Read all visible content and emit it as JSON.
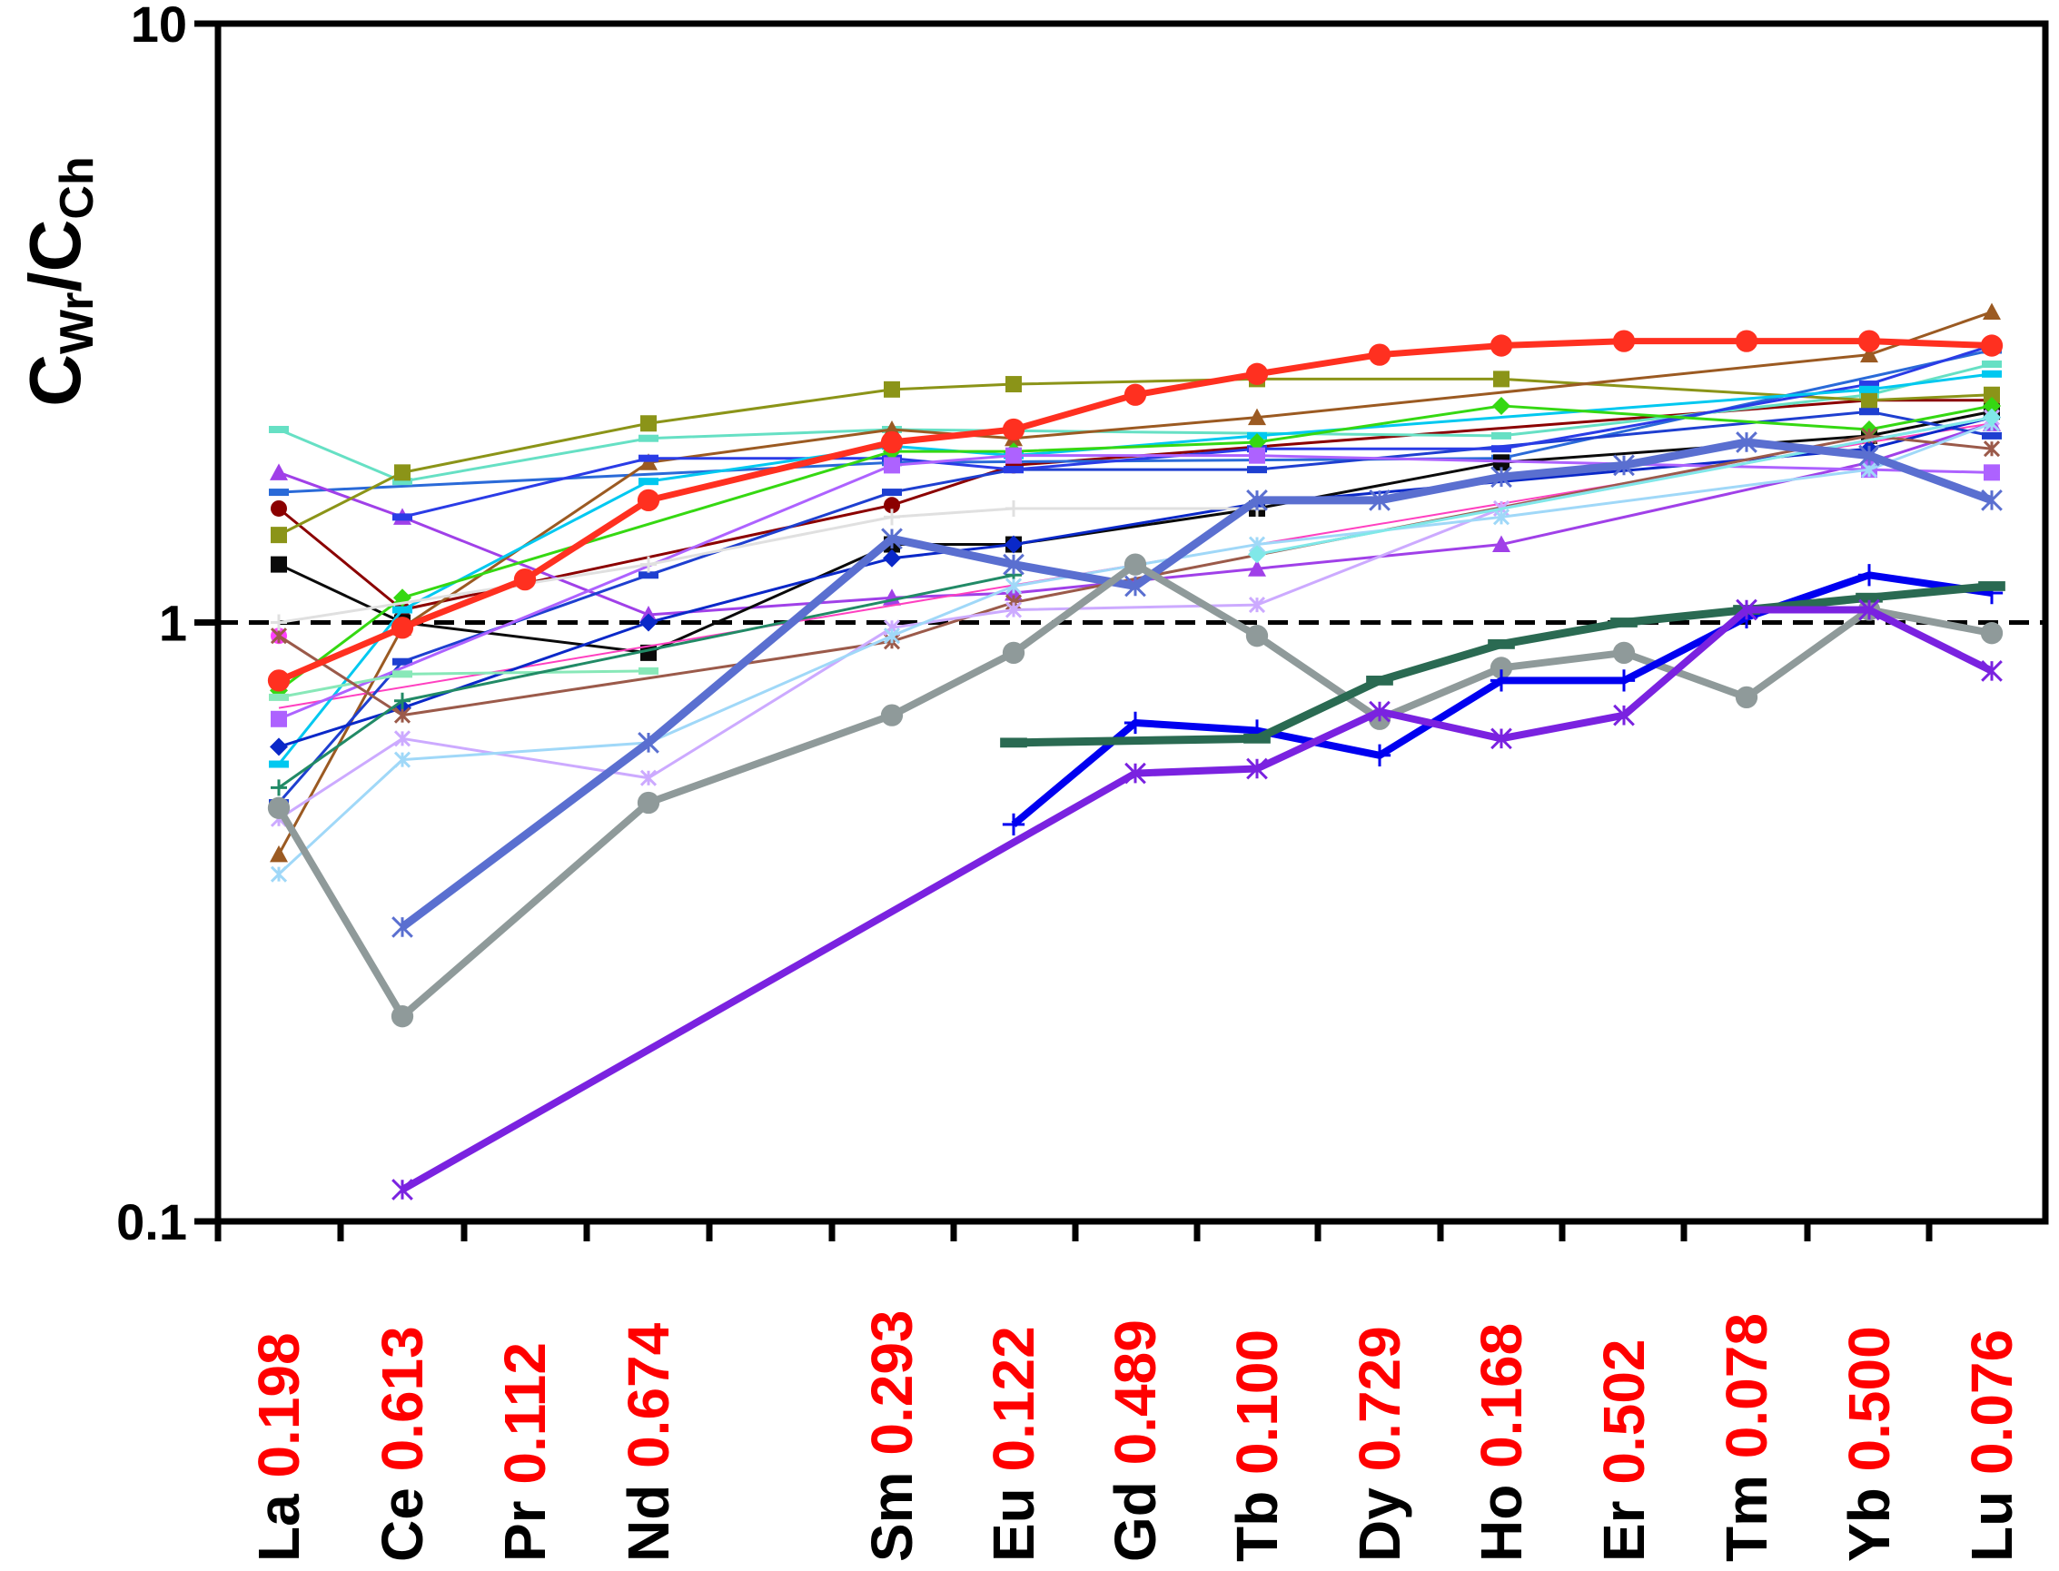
{
  "chart_data": {
    "type": "line",
    "ylabel": {
      "main1": "C",
      "sub1": "Wr",
      "main2": "/C",
      "sub2": "Ch"
    },
    "yscale": "log",
    "ylim": [
      0.1,
      10
    ],
    "yticks": [
      "0.1",
      "1",
      "10"
    ],
    "reference_line": {
      "y": 1,
      "style": "dashed"
    },
    "categories": [
      "La",
      "Ce",
      "Pr",
      "Nd",
      "Sm",
      "Eu",
      "Gd",
      "Tb",
      "Dy",
      "Ho",
      "Er",
      "Tm",
      "Yb",
      "Lu"
    ],
    "category_values": [
      "0.198",
      "0.613",
      "0.112",
      "0.674",
      "0.293",
      "0.122",
      "0.489",
      "0.100",
      "0.729",
      "0.168",
      "0.502",
      "0.078",
      "0.500",
      "0.076"
    ],
    "series": [
      {
        "color": "#8b0000",
        "width": 3,
        "marker": "circle",
        "values": [
          1.55,
          1.05,
          null,
          null,
          1.57,
          1.83,
          null,
          null,
          null,
          null,
          null,
          null,
          2.35,
          2.35
        ]
      },
      {
        "color": "#2a6ad8",
        "width": 3,
        "marker": "dash",
        "values": [
          1.65,
          null,
          null,
          null,
          1.85,
          null,
          null,
          null,
          null,
          1.88,
          null,
          null,
          null,
          2.85
        ]
      },
      {
        "color": "#66e0c4",
        "width": 3,
        "marker": "dash",
        "values": [
          2.1,
          1.72,
          null,
          2.03,
          2.1,
          null,
          null,
          null,
          null,
          2.05,
          null,
          null,
          2.4,
          2.7
        ]
      },
      {
        "color": "#a040e8",
        "width": 3,
        "marker": "triangle",
        "values": [
          1.78,
          1.5,
          null,
          1.03,
          1.1,
          1.12,
          null,
          1.23,
          null,
          1.35,
          null,
          null,
          1.85,
          2.15
        ]
      },
      {
        "color": "#8b9418",
        "width": 3,
        "marker": "square",
        "values": [
          1.4,
          1.78,
          null,
          2.15,
          2.45,
          2.5,
          null,
          2.55,
          null,
          2.55,
          null,
          null,
          2.35,
          2.4
        ]
      },
      {
        "color": "#0a0a0a",
        "width": 3,
        "marker": "square",
        "values": [
          1.25,
          1.0,
          null,
          0.89,
          1.35,
          1.35,
          null,
          1.55,
          null,
          1.85,
          null,
          null,
          2.05,
          2.25
        ]
      },
      {
        "color": "#9b5a22",
        "width": 3,
        "marker": "triangle",
        "values": [
          0.41,
          0.98,
          null,
          1.85,
          2.1,
          2.03,
          null,
          2.2,
          null,
          null,
          null,
          null,
          2.8,
          3.3
        ]
      },
      {
        "color": "#ff40ff",
        "width": 3,
        "marker": "circle",
        "values": [
          0.95,
          null,
          null,
          null,
          null,
          null,
          null,
          null,
          null,
          null,
          null,
          null,
          null,
          null
        ]
      },
      {
        "color": "#ff40c0",
        "width": 2,
        "marker": "none",
        "values": [
          0.72,
          null,
          null,
          null,
          null,
          null,
          null,
          null,
          null,
          null,
          null,
          null,
          2.0,
          2.15
        ]
      },
      {
        "color": "#1e3fd0",
        "width": 3,
        "marker": "dash",
        "values": [
          0.5,
          0.86,
          null,
          1.2,
          1.65,
          1.8,
          null,
          1.8,
          null,
          null,
          null,
          null,
          2.25,
          2.05
        ]
      },
      {
        "color": "#2a3ce6",
        "width": 3,
        "marker": "dash",
        "values": [
          null,
          1.5,
          null,
          1.88,
          1.88,
          1.8,
          null,
          1.95,
          null,
          1.95,
          null,
          null,
          2.5,
          2.9
        ]
      },
      {
        "color": "#00c8f0",
        "width": 3,
        "marker": "dash",
        "values": [
          0.58,
          1.05,
          null,
          1.72,
          1.97,
          1.9,
          null,
          2.05,
          null,
          null,
          null,
          null,
          2.45,
          2.6
        ]
      },
      {
        "color": "#0a28c8",
        "width": 3,
        "marker": "diamond",
        "values": [
          0.62,
          0.72,
          null,
          1.0,
          1.28,
          1.35,
          null,
          1.58,
          null,
          null,
          null,
          null,
          1.95,
          2.2
        ]
      },
      {
        "color": "#35d812",
        "width": 3,
        "marker": "diamond",
        "values": [
          0.77,
          1.1,
          null,
          null,
          1.93,
          1.93,
          null,
          2.0,
          null,
          2.3,
          null,
          null,
          2.1,
          2.3
        ]
      },
      {
        "color": "#ad62ff",
        "width": 3,
        "marker": "square",
        "values": [
          0.69,
          null,
          null,
          null,
          1.83,
          1.9,
          null,
          1.9,
          null,
          null,
          null,
          null,
          1.8,
          1.78
        ]
      },
      {
        "color": "#88e8b8",
        "width": 3,
        "marker": "dash",
        "values": [
          0.75,
          0.82,
          null,
          0.83,
          null,
          null,
          null,
          null,
          null,
          null,
          null,
          null,
          null,
          null
        ]
      },
      {
        "color": "#9b5a4a",
        "width": 3,
        "marker": "x",
        "values": [
          0.95,
          0.7,
          null,
          null,
          0.93,
          1.08,
          null,
          null,
          null,
          null,
          null,
          null,
          2.05,
          1.95
        ]
      },
      {
        "color": "#e0e0e0",
        "width": 3,
        "marker": "plus",
        "values": [
          1.0,
          null,
          null,
          1.25,
          1.5,
          1.55,
          null,
          1.55,
          null,
          null,
          null,
          null,
          null,
          null
        ]
      },
      {
        "color": "#218a66",
        "width": 3,
        "marker": "plus",
        "values": [
          0.53,
          0.74,
          null,
          null,
          null,
          1.2,
          null,
          null,
          null,
          null,
          null,
          null,
          null,
          null
        ]
      },
      {
        "color": "#ccaaff",
        "width": 3,
        "marker": "x",
        "values": [
          0.47,
          0.64,
          null,
          0.55,
          0.98,
          1.05,
          null,
          1.07,
          null,
          1.55,
          null,
          null,
          null,
          2.2
        ]
      },
      {
        "color": "#a0d8f8",
        "width": 3,
        "marker": "x",
        "values": [
          0.38,
          0.59,
          null,
          0.63,
          0.95,
          1.15,
          null,
          1.35,
          null,
          1.5,
          null,
          null,
          1.8,
          2.15
        ]
      },
      {
        "color": "#80e8e8",
        "width": 3,
        "marker": "diamond",
        "values": [
          null,
          null,
          null,
          null,
          null,
          null,
          null,
          1.3,
          null,
          null,
          null,
          null,
          null,
          2.2
        ]
      },
      {
        "color": "#ff3020",
        "width": 7,
        "marker": "circle",
        "values": [
          0.8,
          0.98,
          1.18,
          1.6,
          2.0,
          2.1,
          2.4,
          2.6,
          2.8,
          2.9,
          2.95,
          2.95,
          2.95,
          2.9
        ]
      },
      {
        "color": "#5a6fd0",
        "width": 9,
        "marker": "x",
        "values": [
          null,
          0.31,
          null,
          0.63,
          1.38,
          1.25,
          1.15,
          1.6,
          1.6,
          1.75,
          1.83,
          2.0,
          1.9,
          1.6
        ]
      },
      {
        "color": "#8f9a9a",
        "width": 8,
        "marker": "circle",
        "values": [
          0.49,
          0.22,
          null,
          0.5,
          0.7,
          0.89,
          1.25,
          0.95,
          0.69,
          0.84,
          0.89,
          0.75,
          1.05,
          0.96
        ]
      },
      {
        "color": "#0000f0",
        "width": 8,
        "marker": "plus",
        "values": [
          null,
          null,
          null,
          null,
          null,
          0.46,
          0.68,
          0.66,
          0.6,
          0.8,
          0.8,
          1.02,
          1.2,
          1.12
        ]
      },
      {
        "color": "#2a6a52",
        "width": 9,
        "marker": "dash",
        "values": [
          null,
          null,
          null,
          null,
          null,
          0.63,
          null,
          0.64,
          0.8,
          0.92,
          1.0,
          1.05,
          1.1,
          1.15
        ]
      },
      {
        "color": "#7a22e0",
        "width": 8,
        "marker": "x",
        "values": [
          null,
          0.113,
          null,
          null,
          null,
          null,
          0.56,
          0.57,
          0.71,
          0.64,
          0.7,
          1.05,
          1.05,
          0.83
        ]
      }
    ]
  }
}
